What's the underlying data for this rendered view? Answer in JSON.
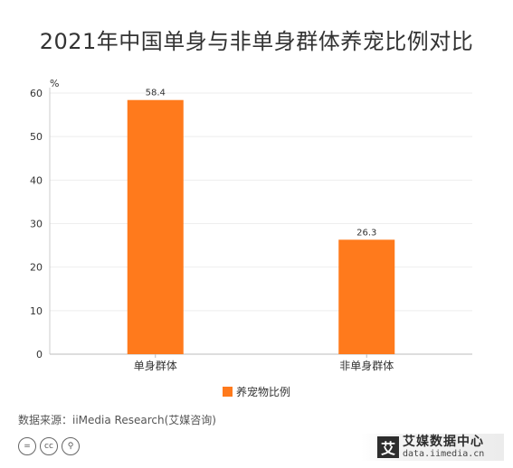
{
  "title": "2021年中国单身与非单身群体养宠比例对比",
  "chart_data": {
    "type": "bar",
    "title": "2021年中国单身与非单身群体养宠比例对比",
    "categories": [
      "单身群体",
      "非单身群体"
    ],
    "series": [
      {
        "name": "养宠物比例",
        "values": [
          58.4,
          26.3
        ],
        "color": "#FF7A1C"
      }
    ],
    "ylabel": "%",
    "ylim": [
      0,
      60
    ],
    "yticks": [
      0,
      10,
      20,
      30,
      40,
      50,
      60
    ],
    "data_labels": [
      "58.4",
      "26.3"
    ],
    "grid": true,
    "legend": "bottom-center"
  },
  "legend": {
    "label": "养宠物比例",
    "color": "#FF7A1C"
  },
  "source": "数据来源：iiMedia Research(艾媒咨询)",
  "brand": {
    "logo_char": "艾",
    "name": "艾媒数据中心",
    "url": "data.iimedia.cn"
  },
  "license_icons": [
    "equals-icon",
    "cc-icon",
    "person-icon"
  ],
  "license_glyphs": [
    "=",
    "cc",
    "⚲"
  ]
}
